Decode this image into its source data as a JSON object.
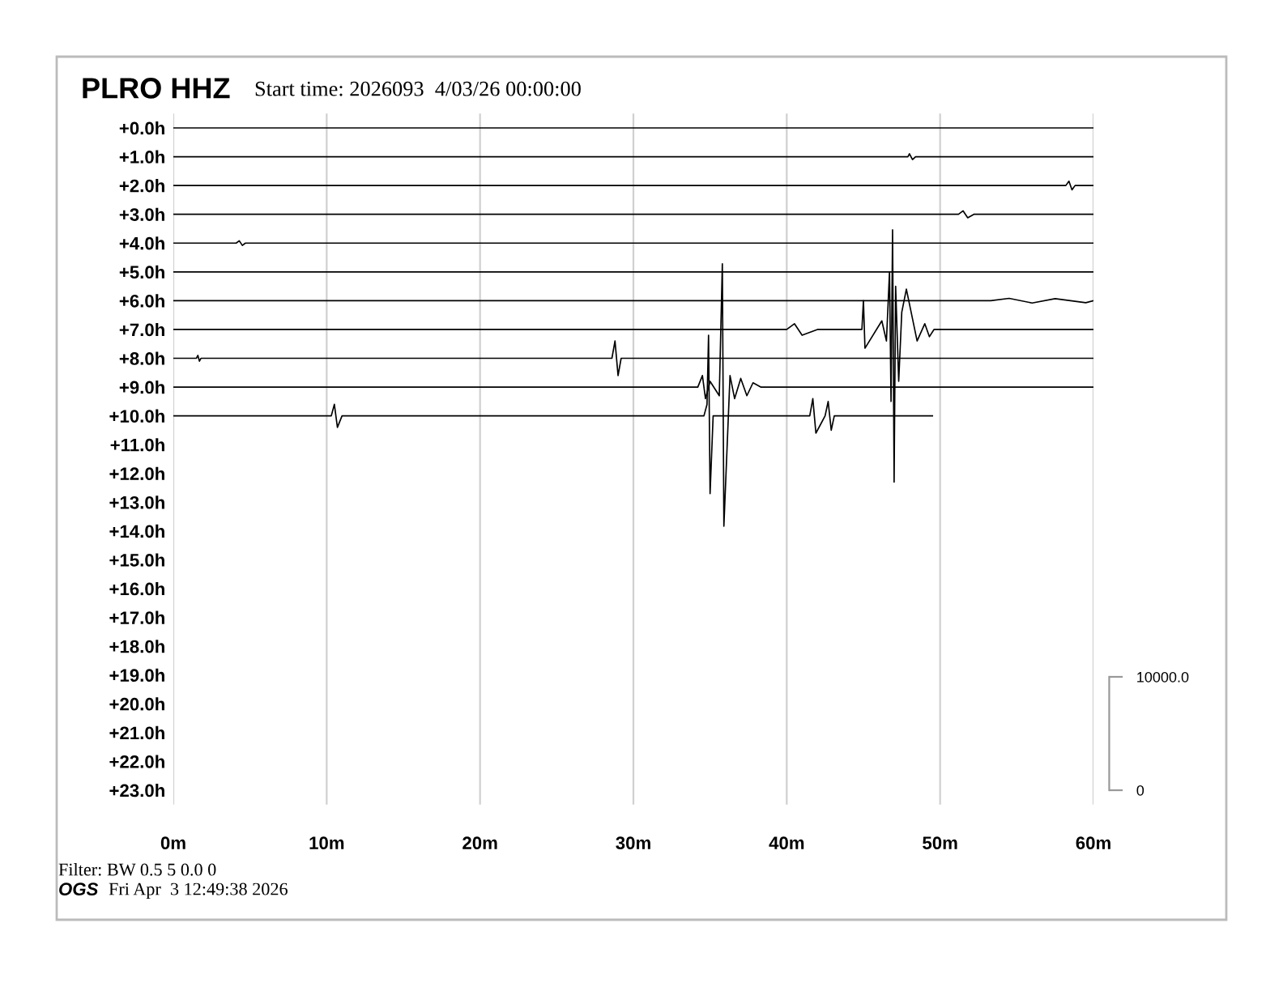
{
  "chart_data": {
    "type": "line",
    "title": "PLRO HHZ",
    "subtitle": "Start time: 2026093  4/03/26 00:00:00",
    "annotations": [
      "Filter: BW 0.5 5 0.0 0",
      "OGS",
      "Fri Apr  3 12:49:38 2026"
    ],
    "xlim": [
      0,
      60
    ],
    "xticks": [
      {
        "value": 0,
        "label": "0m"
      },
      {
        "value": 10,
        "label": "10m"
      },
      {
        "value": 20,
        "label": "20m"
      },
      {
        "value": 30,
        "label": "30m"
      },
      {
        "value": 40,
        "label": "40m"
      },
      {
        "value": 50,
        "label": "50m"
      },
      {
        "value": 60,
        "label": "60m"
      }
    ],
    "ylim": [
      23.5,
      -0.5
    ],
    "yticks": [
      {
        "value": 0,
        "label": "+0.0h"
      },
      {
        "value": 1,
        "label": "+1.0h"
      },
      {
        "value": 2,
        "label": "+2.0h"
      },
      {
        "value": 3,
        "label": "+3.0h"
      },
      {
        "value": 4,
        "label": "+4.0h"
      },
      {
        "value": 5,
        "label": "+5.0h"
      },
      {
        "value": 6,
        "label": "+6.0h"
      },
      {
        "value": 7,
        "label": "+7.0h"
      },
      {
        "value": 8,
        "label": "+8.0h"
      },
      {
        "value": 9,
        "label": "+9.0h"
      },
      {
        "value": 10,
        "label": "+10.0h"
      },
      {
        "value": 11,
        "label": "+11.0h"
      },
      {
        "value": 12,
        "label": "+12.0h"
      },
      {
        "value": 13,
        "label": "+13.0h"
      },
      {
        "value": 14,
        "label": "+14.0h"
      },
      {
        "value": 15,
        "label": "+15.0h"
      },
      {
        "value": 16,
        "label": "+16.0h"
      },
      {
        "value": 17,
        "label": "+17.0h"
      },
      {
        "value": 18,
        "label": "+18.0h"
      },
      {
        "value": 19,
        "label": "+19.0h"
      },
      {
        "value": 20,
        "label": "+20.0h"
      },
      {
        "value": 21,
        "label": "+21.0h"
      },
      {
        "value": 22,
        "label": "+22.0h"
      },
      {
        "value": 23,
        "label": "+23.0h"
      }
    ],
    "y2lim": [
      -1270,
      59690
    ],
    "y2ticks": [
      0,
      {
        "value": 10000,
        "label": "10000.0"
      }
    ],
    "grid": "x",
    "legend": false,
    "line_style": "solid",
    "series": [
      {
        "color": "#000000",
        "x": [
          0,
          60
        ],
        "values": [
          0,
          0
        ]
      },
      {
        "color": "#000000",
        "x": [
          0,
          47.9,
          48.0,
          48.2,
          48.4,
          60
        ],
        "values": [
          1,
          1,
          0.9,
          1.1,
          1,
          1
        ]
      },
      {
        "color": "#000000",
        "x": [
          0,
          58.2,
          58.4,
          58.6,
          58.8,
          60
        ],
        "values": [
          2,
          2,
          1.85,
          2.15,
          2,
          2
        ]
      },
      {
        "color": "#000000",
        "x": [
          0,
          51.2,
          51.5,
          51.8,
          52.2,
          60
        ],
        "values": [
          3,
          3,
          2.88,
          3.12,
          3,
          3
        ]
      },
      {
        "color": "#000000",
        "x": [
          0,
          4.1,
          4.3,
          4.5,
          4.7,
          60
        ],
        "values": [
          4,
          4,
          3.92,
          4.08,
          4,
          4
        ]
      },
      {
        "color": "#000000",
        "x": [
          0,
          60
        ],
        "values": [
          5,
          5
        ]
      },
      {
        "color": "#000000",
        "x": [
          0,
          53.3,
          54.5,
          56,
          57.5,
          59.5,
          60
        ],
        "values": [
          6,
          6,
          5.92,
          6.08,
          5.93,
          6.07,
          6
        ]
      },
      {
        "color": "#000000",
        "x": [
          0,
          40,
          40.5,
          41,
          42,
          44.9,
          45,
          45.1,
          46.2,
          46.5,
          46.7,
          46.8,
          46.9,
          47.0,
          47.1,
          47.3,
          47.5,
          47.8,
          48.5,
          49.0,
          49.3,
          49.6,
          60
        ],
        "values": [
          7,
          7,
          6.8,
          7.2,
          7,
          7,
          6.0,
          7.65,
          6.7,
          7.4,
          5.0,
          9.5,
          3.54,
          12.3,
          5.5,
          8.8,
          6.4,
          5.6,
          7.4,
          6.8,
          7.25,
          7,
          7
        ]
      },
      {
        "color": "#000000",
        "x": [
          0,
          1.5,
          1.6,
          1.7,
          1.8,
          28.6,
          28.8,
          29.0,
          29.2,
          60
        ],
        "values": [
          8,
          8,
          7.9,
          8.1,
          8,
          8,
          7.4,
          8.6,
          8,
          8
        ]
      },
      {
        "color": "#000000",
        "x": [
          0,
          34.2,
          34.5,
          34.7,
          35.0,
          35.6,
          35.8,
          35.9,
          36.3,
          36.6,
          37.0,
          37.4,
          37.8,
          38.3,
          60
        ],
        "values": [
          9,
          9,
          8.6,
          9.4,
          8.8,
          9.3,
          4.72,
          13.83,
          8.6,
          9.4,
          8.7,
          9.3,
          8.85,
          9,
          9
        ]
      },
      {
        "color": "#000000",
        "x": [
          0,
          10.3,
          10.5,
          10.7,
          11,
          34.6,
          34.8,
          34.9,
          35.0,
          35.2,
          41.5,
          41.7,
          41.9,
          42.5,
          42.7,
          42.9,
          43.1,
          49.5
        ],
        "values": [
          10,
          10,
          9.6,
          10.4,
          10,
          10,
          9.6,
          7.2,
          12.7,
          10,
          10,
          9.4,
          10.6,
          10,
          9.5,
          10.5,
          10,
          10
        ]
      }
    ]
  }
}
